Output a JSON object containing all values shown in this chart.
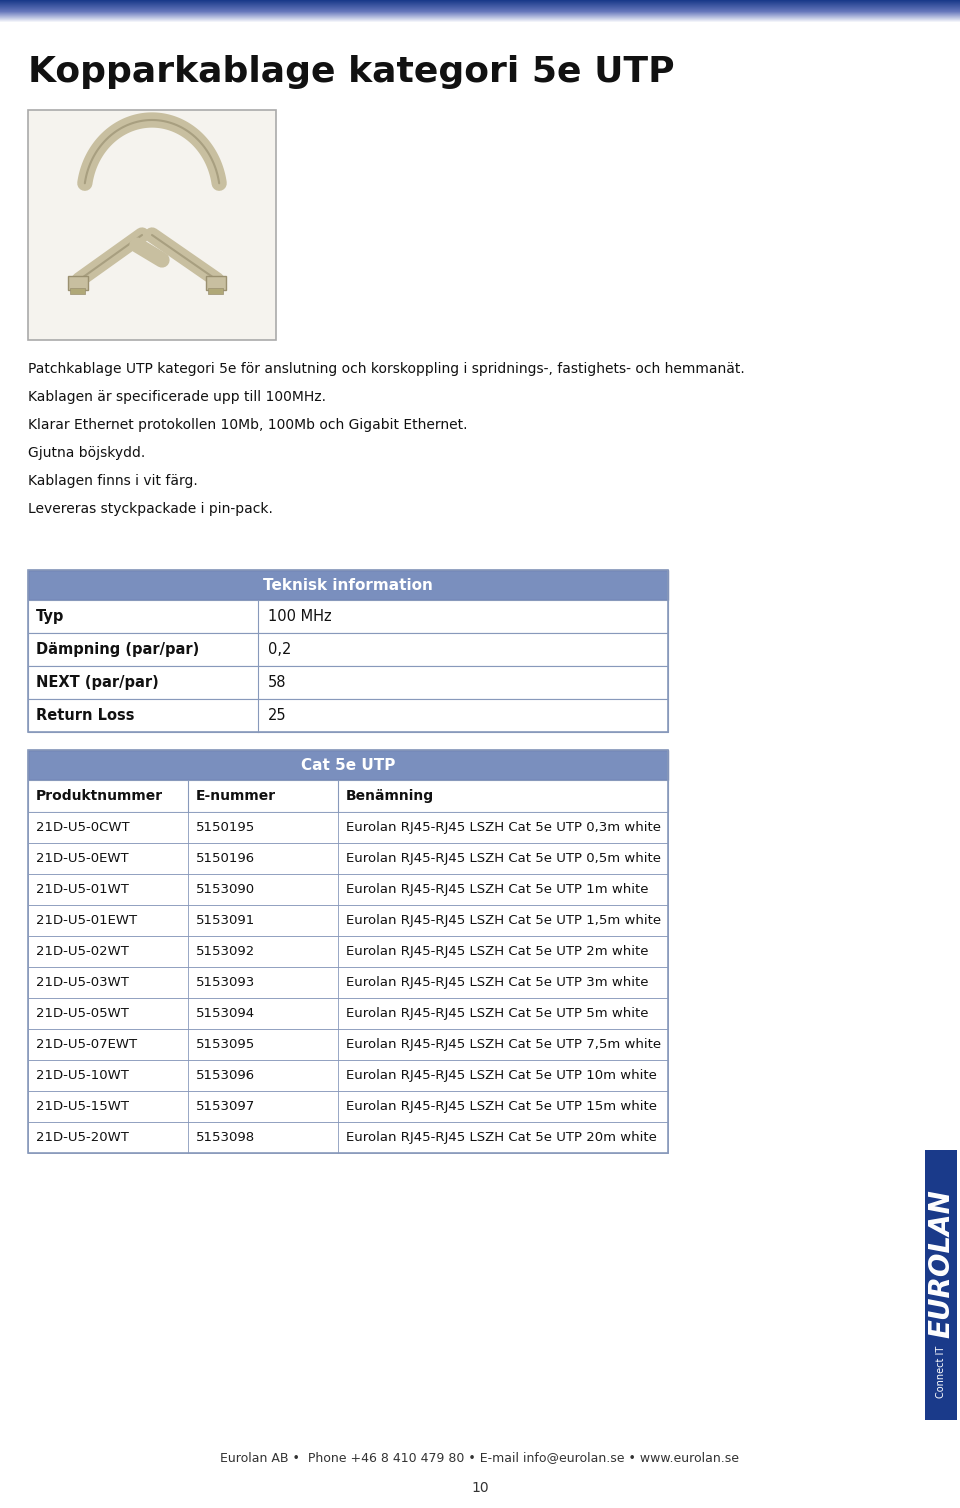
{
  "title": "Kopparkablage kategori 5e UTP",
  "body_bg": "#ffffff",
  "description_lines": [
    "Patchkablage UTP kategori 5e för anslutning och korskoppling i spridnings-, fastighets- och hemmanät.",
    "Kablagen är specificerade upp till 100MHz.",
    "Klarar Ethernet protokollen 10Mb, 100Mb och Gigabit Ethernet.",
    "Gjutna böjskydd.",
    "Kablagen finns i vit färg.",
    "Levereras styckpackade i pin-pack."
  ],
  "tech_header": "Teknisk information",
  "tech_header_bg": "#7a8fbe",
  "tech_header_text_color": "#ffffff",
  "tech_rows": [
    {
      "label": "Typ",
      "value": "100 MHz"
    },
    {
      "label": "Dämpning (par/par)",
      "value": "0,2"
    },
    {
      "label": "NEXT (par/par)",
      "value": "58"
    },
    {
      "label": "Return Loss",
      "value": "25"
    }
  ],
  "cat_header": "Cat 5e UTP",
  "cat_header_bg": "#7a8fbe",
  "cat_header_text_color": "#ffffff",
  "cat_col_headers": [
    "Produktnummer",
    "E-nummer",
    "Benämning"
  ],
  "cat_rows": [
    [
      "21D-U5-0CWT",
      "5150195",
      "Eurolan RJ45-RJ45 LSZH Cat 5e UTP 0,3m white"
    ],
    [
      "21D-U5-0EWT",
      "5150196",
      "Eurolan RJ45-RJ45 LSZH Cat 5e UTP 0,5m white"
    ],
    [
      "21D-U5-01WT",
      "5153090",
      "Eurolan RJ45-RJ45 LSZH Cat 5e UTP 1m white"
    ],
    [
      "21D-U5-01EWT",
      "5153091",
      "Eurolan RJ45-RJ45 LSZH Cat 5e UTP 1,5m white"
    ],
    [
      "21D-U5-02WT",
      "5153092",
      "Eurolan RJ45-RJ45 LSZH Cat 5e UTP 2m white"
    ],
    [
      "21D-U5-03WT",
      "5153093",
      "Eurolan RJ45-RJ45 LSZH Cat 5e UTP 3m white"
    ],
    [
      "21D-U5-05WT",
      "5153094",
      "Eurolan RJ45-RJ45 LSZH Cat 5e UTP 5m white"
    ],
    [
      "21D-U5-07EWT",
      "5153095",
      "Eurolan RJ45-RJ45 LSZH Cat 5e UTP 7,5m white"
    ],
    [
      "21D-U5-10WT",
      "5153096",
      "Eurolan RJ45-RJ45 LSZH Cat 5e UTP 10m white"
    ],
    [
      "21D-U5-15WT",
      "5153097",
      "Eurolan RJ45-RJ45 LSZH Cat 5e UTP 15m white"
    ],
    [
      "21D-U5-20WT",
      "5153098",
      "Eurolan RJ45-RJ45 LSZH Cat 5e UTP 20m white"
    ]
  ],
  "footer_text": "Eurolan AB •  Phone +46 8 410 479 80 • E-mail info@eurolan.se • www.eurolan.se",
  "page_number": "10",
  "eurolan_logo_text": "EUROLAN",
  "connect_it_text": "Connect IT",
  "logo_bar_color": "#1a3a8a",
  "logo_text_color": "#1a3a8a"
}
